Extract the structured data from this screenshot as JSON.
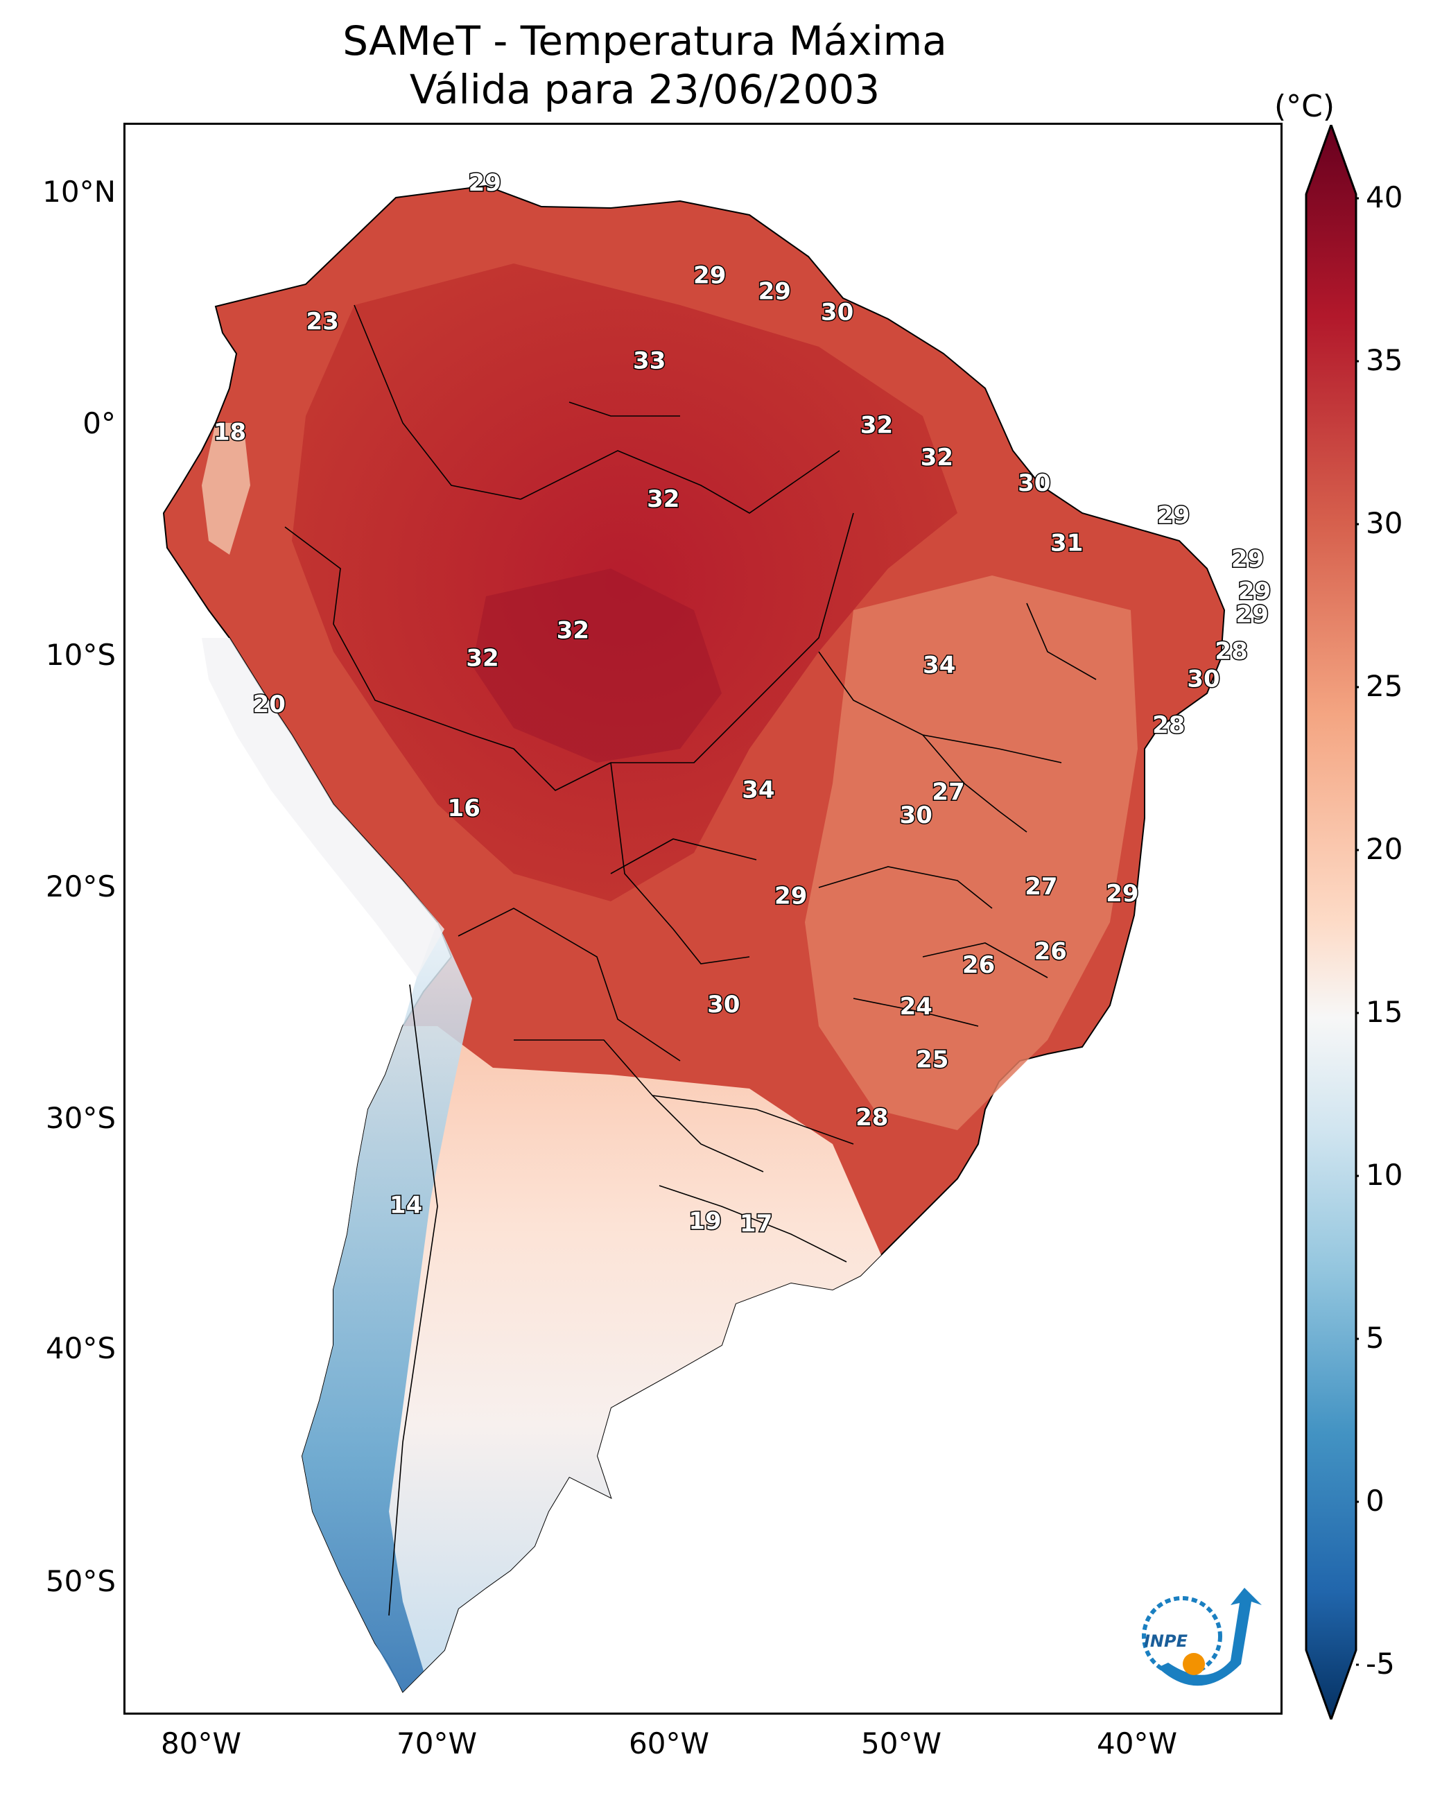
{
  "title": {
    "line1": "SAMeT - Temperatura Máxima",
    "line2": "Válida para 23/06/2003"
  },
  "colorbar": {
    "unit": "(°C)",
    "ticks": [
      "40",
      "35",
      "30",
      "25",
      "20",
      "15",
      "10",
      "5",
      "0",
      "-5"
    ],
    "tick_values": [
      40,
      35,
      30,
      25,
      20,
      15,
      10,
      5,
      0,
      -5
    ],
    "colors": [
      "#67001f",
      "#b2182b",
      "#d6604d",
      "#f4a582",
      "#fddbc7",
      "#f7f7f7",
      "#d1e5f0",
      "#92c5de",
      "#4393c3",
      "#2166ac",
      "#053061"
    ]
  },
  "axes": {
    "lat_labels": [
      "10°N",
      "0°",
      "10°S",
      "20°S",
      "30°S",
      "40°S",
      "50°S"
    ],
    "lon_labels": [
      "80°W",
      "70°W",
      "60°W",
      "50°W",
      "40°W"
    ]
  },
  "map": {
    "extent": {
      "lon": [
        -83,
        -33
      ],
      "lat": [
        -56,
        13
      ]
    },
    "labels": [
      {
        "text": "29",
        "lon": -67.5,
        "lat": 10.5
      },
      {
        "text": "23",
        "lon": -74.5,
        "lat": 4.5
      },
      {
        "text": "29",
        "lon": -57.8,
        "lat": 6.5
      },
      {
        "text": "29",
        "lon": -55.0,
        "lat": 5.8
      },
      {
        "text": "30",
        "lon": -52.3,
        "lat": 4.9
      },
      {
        "text": "33",
        "lon": -60.4,
        "lat": 2.8
      },
      {
        "text": "18",
        "lon": -78.5,
        "lat": -0.3
      },
      {
        "text": "32",
        "lon": -50.6,
        "lat": 0.0
      },
      {
        "text": "32",
        "lon": -48.0,
        "lat": -1.4
      },
      {
        "text": "32",
        "lon": -59.8,
        "lat": -3.2
      },
      {
        "text": "30",
        "lon": -43.8,
        "lat": -2.5
      },
      {
        "text": "29",
        "lon": -37.8,
        "lat": -3.9
      },
      {
        "text": "31",
        "lon": -42.4,
        "lat": -5.1
      },
      {
        "text": "29",
        "lon": -34.6,
        "lat": -5.8
      },
      {
        "text": "29",
        "lon": -34.3,
        "lat": -7.2
      },
      {
        "text": "29",
        "lon": -34.4,
        "lat": -8.2
      },
      {
        "text": "32",
        "lon": -63.7,
        "lat": -8.9
      },
      {
        "text": "32",
        "lon": -67.6,
        "lat": -10.1
      },
      {
        "text": "34",
        "lon": -47.9,
        "lat": -10.4
      },
      {
        "text": "28",
        "lon": -35.3,
        "lat": -9.8
      },
      {
        "text": "30",
        "lon": -36.5,
        "lat": -11.0
      },
      {
        "text": "20",
        "lon": -76.8,
        "lat": -12.1
      },
      {
        "text": "28",
        "lon": -38.0,
        "lat": -13.0
      },
      {
        "text": "34",
        "lon": -55.7,
        "lat": -15.8
      },
      {
        "text": "27",
        "lon": -47.5,
        "lat": -15.9
      },
      {
        "text": "30",
        "lon": -48.9,
        "lat": -16.9
      },
      {
        "text": "16",
        "lon": -68.4,
        "lat": -16.6
      },
      {
        "text": "27",
        "lon": -43.5,
        "lat": -20.0
      },
      {
        "text": "29",
        "lon": -40.0,
        "lat": -20.3
      },
      {
        "text": "29",
        "lon": -54.3,
        "lat": -20.4
      },
      {
        "text": "26",
        "lon": -43.1,
        "lat": -22.8
      },
      {
        "text": "26",
        "lon": -46.2,
        "lat": -23.4
      },
      {
        "text": "24",
        "lon": -48.9,
        "lat": -25.2
      },
      {
        "text": "30",
        "lon": -57.2,
        "lat": -25.1
      },
      {
        "text": "25",
        "lon": -48.2,
        "lat": -27.5
      },
      {
        "text": "28",
        "lon": -50.8,
        "lat": -30.0
      },
      {
        "text": "14",
        "lon": -70.9,
        "lat": -33.8
      },
      {
        "text": "19",
        "lon": -58.0,
        "lat": -34.5
      },
      {
        "text": "17",
        "lon": -55.8,
        "lat": -34.6
      }
    ]
  },
  "logo": {
    "text": "INPE"
  }
}
